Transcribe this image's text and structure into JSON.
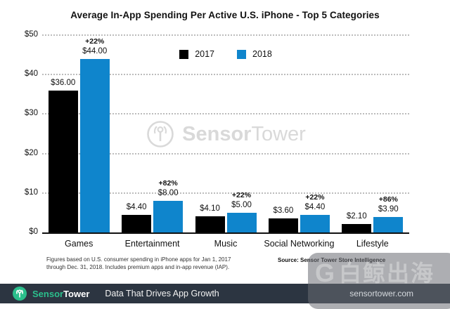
{
  "title": "Average In-App Spending Per Active U.S. iPhone - Top 5 Categories",
  "chart_data": {
    "type": "bar",
    "title": "Average In-App Spending Per Active U.S. iPhone - Top 5 Categories",
    "categories": [
      "Games",
      "Entertainment",
      "Music",
      "Social Networking",
      "Lifestyle"
    ],
    "series": [
      {
        "name": "2017",
        "color": "#000000",
        "values": [
          36.0,
          4.4,
          4.1,
          3.6,
          2.1
        ],
        "value_labels": [
          "$36.00",
          "$4.40",
          "$4.10",
          "$3.60",
          "$2.10"
        ]
      },
      {
        "name": "2018",
        "color": "#0f85cc",
        "values": [
          44.0,
          8.0,
          5.0,
          4.4,
          3.9
        ],
        "value_labels": [
          "$44.00",
          "$8.00",
          "$5.00",
          "$4.40",
          "$3.90"
        ]
      }
    ],
    "pct_change_labels": [
      "+22%",
      "+82%",
      "+22%",
      "+22%",
      "+86%"
    ],
    "ylim": [
      0,
      50
    ],
    "yticks": [
      {
        "value": 50,
        "label": "$50"
      },
      {
        "value": 40,
        "label": "$40"
      },
      {
        "value": 30,
        "label": "$30"
      },
      {
        "value": 20,
        "label": "$20"
      },
      {
        "value": 10,
        "label": "$10"
      },
      {
        "value": 0,
        "label": "$0"
      }
    ],
    "grid": "dotted-horizontal",
    "legend_position": "top-center"
  },
  "watermark_center": {
    "brand_bold": "Sensor",
    "brand_light": "Tower",
    "color": "#d9d9d9"
  },
  "footnote": {
    "line1": "Figures based on U.S. consumer spending in iPhone apps for Jan 1, 2017",
    "line2": "through Dec. 31, 2018. Includes premium apps and in-app revenue (IAP).",
    "source": "Source: Sensor Tower Store Intelligence"
  },
  "footer_bar": {
    "brand_green": "Sensor",
    "brand_white": "Tower",
    "tagline": "Data That Drives App Growth",
    "background_color": "#2c3541",
    "accent_green": "#2bbf8c"
  },
  "watermark_overlay": {
    "logo_letter": "G",
    "cn_text": "白鲸出海",
    "url": "sensortower.com"
  }
}
